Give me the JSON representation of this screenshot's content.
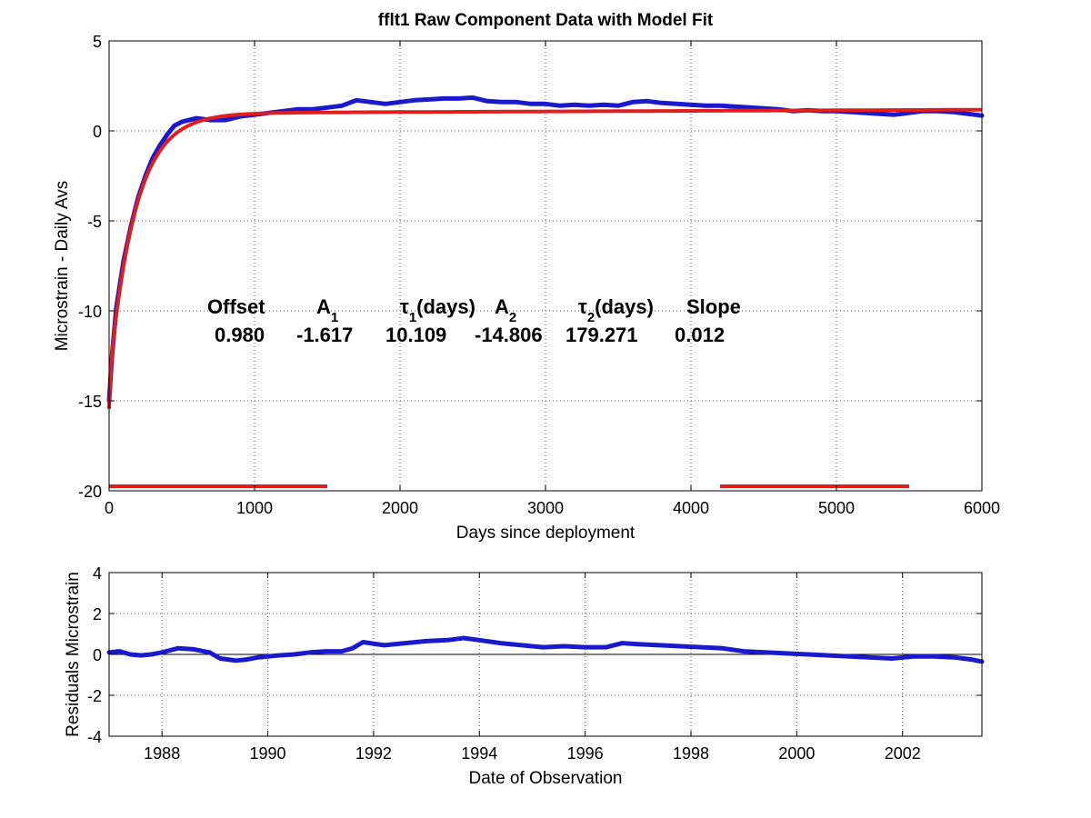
{
  "chart_data": [
    {
      "type": "line",
      "title": "fflt1  Raw Component Data with Model Fit",
      "xlabel": "Days since deployment",
      "ylabel": "Microstrain - Daily Avs",
      "xlim": [
        0,
        6000
      ],
      "ylim": [
        -20,
        5
      ],
      "xticks": [
        "0",
        "1000",
        "2000",
        "3000",
        "4000",
        "5000",
        "6000"
      ],
      "yticks": [
        "5",
        "0",
        "-5",
        "-10",
        "-15",
        "-20"
      ],
      "grid": true,
      "series": [
        {
          "kind": "data",
          "color": "#1a1acc",
          "x": [
            0,
            20,
            50,
            100,
            150,
            200,
            250,
            300,
            350,
            400,
            450,
            500,
            600,
            700,
            800,
            900,
            1000,
            1100,
            1200,
            1300,
            1400,
            1500,
            1600,
            1700,
            1800,
            1900,
            2000,
            2100,
            2200,
            2300,
            2400,
            2500,
            2600,
            2700,
            2800,
            2900,
            3000,
            3100,
            3200,
            3300,
            3400,
            3500,
            3600,
            3700,
            3800,
            3900,
            4000,
            4100,
            4200,
            4300,
            4400,
            4500,
            4600,
            4700,
            4800,
            4900,
            5000,
            5100,
            5200,
            5300,
            5400,
            5500,
            5600,
            5700,
            5800,
            5900,
            6000
          ],
          "y": [
            -15,
            -12.5,
            -9.8,
            -7.2,
            -5.3,
            -3.7,
            -2.5,
            -1.5,
            -0.8,
            -0.2,
            0.3,
            0.5,
            0.7,
            0.6,
            0.6,
            0.8,
            0.9,
            1.0,
            1.1,
            1.2,
            1.2,
            1.3,
            1.4,
            1.7,
            1.6,
            1.5,
            1.6,
            1.7,
            1.75,
            1.8,
            1.8,
            1.85,
            1.65,
            1.6,
            1.6,
            1.5,
            1.5,
            1.4,
            1.45,
            1.4,
            1.45,
            1.4,
            1.6,
            1.65,
            1.55,
            1.5,
            1.45,
            1.4,
            1.4,
            1.35,
            1.3,
            1.25,
            1.2,
            1.1,
            1.15,
            1.1,
            1.1,
            1.05,
            1.0,
            0.95,
            0.9,
            1.0,
            1.1,
            1.1,
            1.05,
            0.95,
            0.85
          ]
        },
        {
          "kind": "model-fit",
          "color": "#e01e1e",
          "formula": "Offset + A1*exp(-t/tau1) + A2*exp(-t/tau2) + Slope*t/365"
        }
      ],
      "fit_params": {
        "headers": [
          "Offset",
          "A",
          "τ",
          "(days)",
          "A",
          "τ",
          "(days)",
          "Slope"
        ],
        "subscripts": [
          "1",
          "1",
          "2",
          "2"
        ],
        "values": [
          "0.980",
          "-1.617",
          "10.109",
          "-14.806",
          "179.271",
          "0.012"
        ],
        "offset": 0.98,
        "A1": -1.617,
        "tau1": 10.109,
        "A2": -14.806,
        "tau2": 179.271,
        "slope": 0.012
      },
      "fit_windows": [
        [
          0,
          1500
        ],
        [
          4200,
          5500
        ]
      ],
      "fit_window_level": -19.75
    },
    {
      "type": "line",
      "xlabel": "Date of Observation",
      "ylabel": "Residuals Microstrain",
      "xlim": [
        1987,
        2003.5
      ],
      "ylim": [
        -4,
        4
      ],
      "xticks": [
        "1988",
        "1990",
        "1992",
        "1994",
        "1996",
        "1998",
        "2000",
        "2002"
      ],
      "yticks": [
        "4",
        "2",
        "0",
        "-2",
        "-4"
      ],
      "grid": true,
      "zero_line": true,
      "series": [
        {
          "kind": "residuals",
          "color": "#1a1acc",
          "x": [
            1987.0,
            1987.2,
            1987.4,
            1987.6,
            1987.8,
            1988.0,
            1988.3,
            1988.6,
            1988.9,
            1989.1,
            1989.4,
            1989.6,
            1989.8,
            1990.2,
            1990.5,
            1990.8,
            1991.1,
            1991.4,
            1991.6,
            1991.8,
            1992.2,
            1992.6,
            1993.0,
            1993.4,
            1993.7,
            1994.0,
            1994.4,
            1994.8,
            1995.2,
            1995.6,
            1996.0,
            1996.4,
            1996.7,
            1997.0,
            1997.4,
            1997.8,
            1998.2,
            1998.6,
            1999.0,
            1999.4,
            1999.8,
            2000.2,
            2000.6,
            2001.0,
            2001.4,
            2001.8,
            2002.2,
            2002.6,
            2003.0,
            2003.3,
            2003.5
          ],
          "y": [
            0.1,
            0.15,
            0.0,
            -0.05,
            0.0,
            0.1,
            0.3,
            0.25,
            0.1,
            -0.2,
            -0.3,
            -0.25,
            -0.15,
            -0.05,
            0.0,
            0.1,
            0.15,
            0.15,
            0.3,
            0.6,
            0.45,
            0.55,
            0.65,
            0.7,
            0.8,
            0.7,
            0.55,
            0.45,
            0.35,
            0.4,
            0.35,
            0.35,
            0.55,
            0.5,
            0.45,
            0.4,
            0.35,
            0.3,
            0.15,
            0.1,
            0.05,
            0.0,
            -0.05,
            -0.1,
            -0.15,
            -0.2,
            -0.1,
            -0.1,
            -0.15,
            -0.25,
            -0.35
          ]
        }
      ]
    }
  ]
}
